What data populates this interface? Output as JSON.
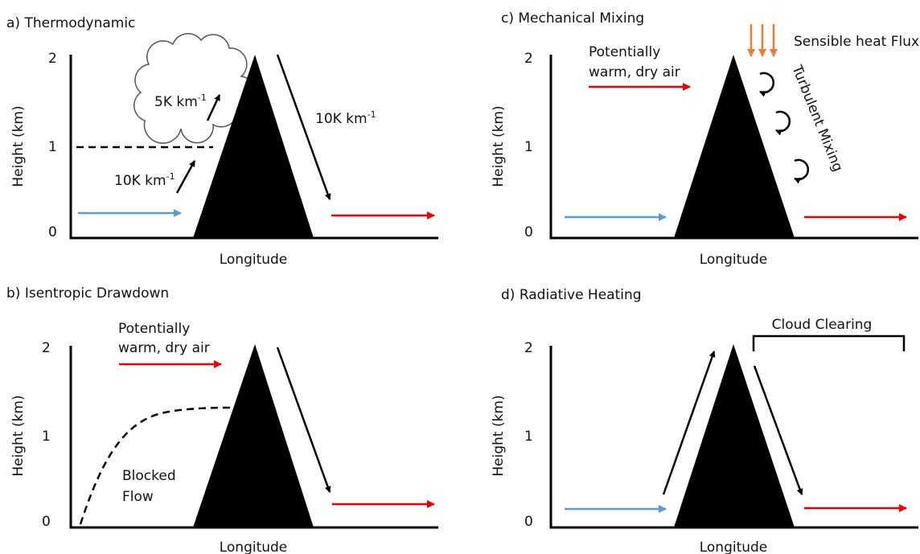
{
  "panels": [
    {
      "title": "a) Thermodynamic",
      "y_axis_label": "Height (km)",
      "y_ticks": [
        "2",
        "1",
        "0"
      ],
      "x_axis_label": "Longitude",
      "annotations": [
        {
          "base": "5K km",
          "sup": "-1"
        },
        {
          "base": "10K km",
          "sup": "-1"
        },
        {
          "base": "10K km",
          "sup": "-1"
        }
      ]
    },
    {
      "title": "b) Isentropic Drawdown",
      "y_axis_label": "Height (km)",
      "y_ticks": [
        "2",
        "1",
        "0"
      ],
      "x_axis_label": "Longitude",
      "annotations": [
        "Potentially",
        "warm, dry air",
        "Blocked",
        "Flow"
      ]
    },
    {
      "title": "c) Mechanical Mixing",
      "y_axis_label": "Height (km)",
      "y_ticks": [
        "2",
        "1",
        "0"
      ],
      "x_axis_label": "Longitude",
      "annotations": [
        "Potentially",
        "warm, dry air",
        "Sensible heat Flux",
        "Turbulent Mixing"
      ]
    },
    {
      "title": "d) Radiative Heating",
      "y_axis_label": "Height (km)",
      "y_ticks": [
        "2",
        "1",
        "0"
      ],
      "x_axis_label": "Longitude",
      "annotations": [
        "Cloud Clearing"
      ]
    }
  ]
}
